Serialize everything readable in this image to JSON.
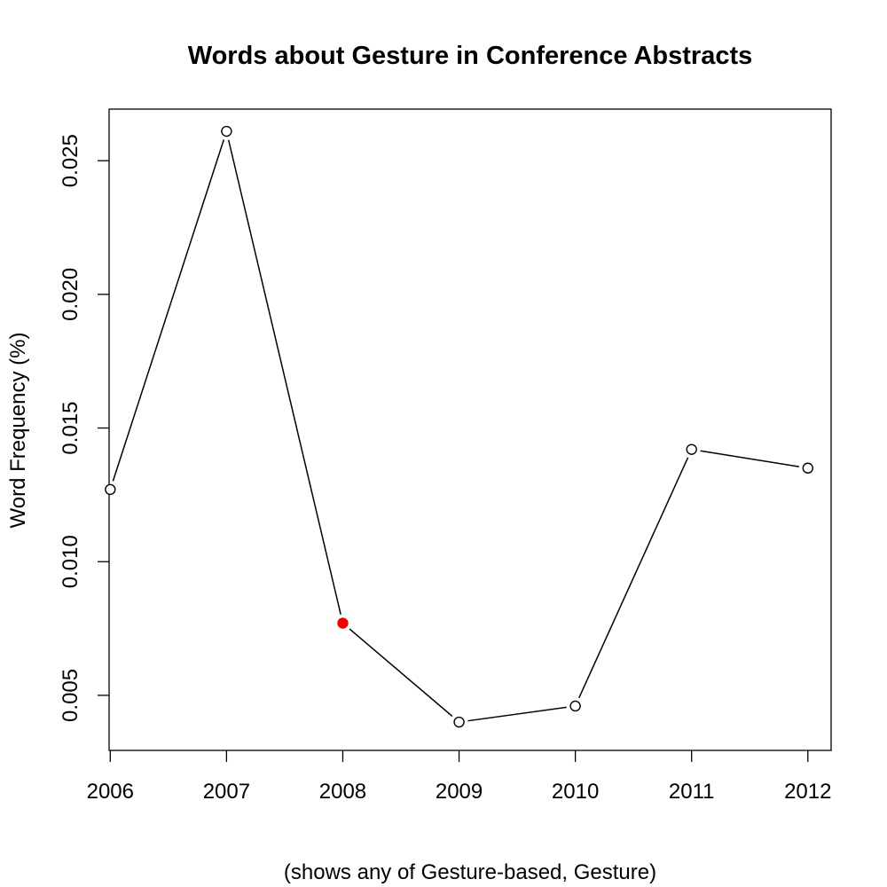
{
  "chart_data": {
    "type": "line",
    "title": "Words about Gesture in Conference Abstracts",
    "xlabel": "(shows any of Gesture-based, Gesture)",
    "ylabel": "Word Frequency (%)",
    "x": [
      2006,
      2007,
      2008,
      2009,
      2010,
      2011,
      2012
    ],
    "x_tick_labels": [
      "2006",
      "2007",
      "2008",
      "2009",
      "2010",
      "2011",
      "2012"
    ],
    "y_ticks": [
      0.005,
      0.01,
      0.015,
      0.02,
      0.025
    ],
    "y_tick_labels": [
      "0.005",
      "0.010",
      "0.015",
      "0.020",
      "0.025"
    ],
    "xlim": [
      2005.99,
      2012.2
    ],
    "ylim": [
      0.00294,
      0.02693
    ],
    "series": [
      {
        "values": [
          0.0127,
          0.0261,
          0.0077,
          0.004,
          0.0046,
          0.0142,
          0.0135
        ],
        "color": "#000000",
        "marker": "open-circle",
        "highlight_index": 2,
        "highlight_color": "#ee0000"
      }
    ],
    "grid": false,
    "legend": "none"
  }
}
